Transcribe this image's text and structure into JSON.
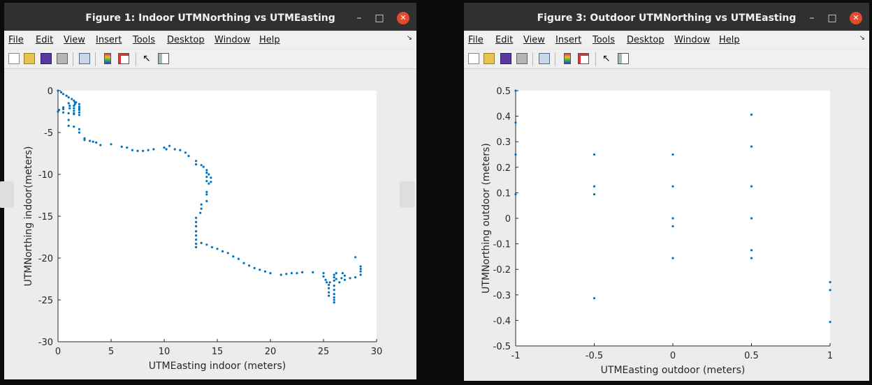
{
  "windows": [
    {
      "title": "Figure 1: Indoor UTMNorthing vs UTMEasting",
      "menu": [
        "File",
        "Edit",
        "View",
        "Insert",
        "Tools",
        "Desktop",
        "Window",
        "Help"
      ],
      "chart_data": {
        "type": "scatter",
        "xlabel": "UTMEasting indoor (meters)",
        "ylabel": "UTMNorthing indoor(meters)",
        "xlim": [
          0,
          30
        ],
        "ylim": [
          -30,
          0
        ],
        "xticks": [
          "0",
          "5",
          "10",
          "15",
          "20",
          "25",
          "30"
        ],
        "yticks": [
          "0",
          "-5",
          "-10",
          "-15",
          "-20",
          "-25",
          "-30"
        ],
        "grid": false,
        "marker_color": "#0072BD",
        "points": [
          [
            0,
            0
          ],
          [
            0.3,
            -0.2
          ],
          [
            0.5,
            -0.4
          ],
          [
            0.8,
            -0.6
          ],
          [
            1,
            -0.8
          ],
          [
            1.3,
            -1
          ],
          [
            1.5,
            -1.2
          ],
          [
            1.7,
            -1.4
          ],
          [
            2,
            -1.6
          ],
          [
            0,
            -2.5
          ],
          [
            0.1,
            -2.3
          ],
          [
            0.5,
            -2.6
          ],
          [
            1,
            -2.7
          ],
          [
            1.5,
            -2.8
          ],
          [
            2,
            -2.9
          ],
          [
            0.5,
            -2
          ],
          [
            0.5,
            -2.2
          ],
          [
            1,
            -1.5
          ],
          [
            1.1,
            -1.8
          ],
          [
            1.1,
            -2.1
          ],
          [
            1.5,
            -1.8
          ],
          [
            1.5,
            -2.1
          ],
          [
            1.5,
            -2.4
          ],
          [
            1.5,
            -2.7
          ],
          [
            1.6,
            -1.4
          ],
          [
            1.6,
            -1.6
          ],
          [
            2,
            -1.9
          ],
          [
            2,
            -2.1
          ],
          [
            2,
            -2.3
          ],
          [
            2,
            -2.6
          ],
          [
            1,
            -3.5
          ],
          [
            1,
            -4.2
          ],
          [
            1.5,
            -4.3
          ],
          [
            2,
            -4.6
          ],
          [
            2,
            -5
          ],
          [
            2.5,
            -5.7
          ],
          [
            2.5,
            -5.9
          ],
          [
            3,
            -6
          ],
          [
            3.3,
            -6.1
          ],
          [
            3.6,
            -6.2
          ],
          [
            4,
            -6.5
          ],
          [
            5,
            -6.4
          ],
          [
            6,
            -6.7
          ],
          [
            6.5,
            -6.8
          ],
          [
            7,
            -7.1
          ],
          [
            7.5,
            -7.2
          ],
          [
            8,
            -7.2
          ],
          [
            8.5,
            -7.1
          ],
          [
            9,
            -7
          ],
          [
            10,
            -6.8
          ],
          [
            10.2,
            -7
          ],
          [
            10.5,
            -6.6
          ],
          [
            11,
            -7
          ],
          [
            11.5,
            -7.1
          ],
          [
            12,
            -7.4
          ],
          [
            12.3,
            -7.8
          ],
          [
            13,
            -8.4
          ],
          [
            13,
            -8.8
          ],
          [
            13.5,
            -8.9
          ],
          [
            13.7,
            -9.1
          ],
          [
            14,
            -9.5
          ],
          [
            14,
            -9.8
          ],
          [
            14,
            -10.3
          ],
          [
            14,
            -10.8
          ],
          [
            14.2,
            -10
          ],
          [
            14.4,
            -10.4
          ],
          [
            14.4,
            -10.9
          ],
          [
            14.2,
            -11.1
          ],
          [
            14,
            -12.1
          ],
          [
            14,
            -12.4
          ],
          [
            14,
            -13.2
          ],
          [
            13.5,
            -13.6
          ],
          [
            13.5,
            -14.1
          ],
          [
            13.4,
            -14.6
          ],
          [
            13,
            -15.2
          ],
          [
            13,
            -15.7
          ],
          [
            13,
            -16.2
          ],
          [
            13,
            -16.8
          ],
          [
            13,
            -17.3
          ],
          [
            13,
            -17.8
          ],
          [
            13,
            -18.3
          ],
          [
            13,
            -18.7
          ],
          [
            13.5,
            -18.2
          ],
          [
            14,
            -18.4
          ],
          [
            14.5,
            -18.7
          ],
          [
            15,
            -18.9
          ],
          [
            15.5,
            -19.2
          ],
          [
            16,
            -19.4
          ],
          [
            16.5,
            -19.8
          ],
          [
            17,
            -20.1
          ],
          [
            17.5,
            -20.6
          ],
          [
            18,
            -20.9
          ],
          [
            18.5,
            -21.2
          ],
          [
            19,
            -21.4
          ],
          [
            19.5,
            -21.6
          ],
          [
            20,
            -21.8
          ],
          [
            21,
            -22
          ],
          [
            21.5,
            -21.9
          ],
          [
            22,
            -21.8
          ],
          [
            22.5,
            -21.8
          ],
          [
            23,
            -21.7
          ],
          [
            24,
            -21.7
          ],
          [
            25,
            -21.8
          ],
          [
            25,
            -22.2
          ],
          [
            25.2,
            -22.6
          ],
          [
            25.3,
            -22.9
          ],
          [
            25.5,
            -23.2
          ],
          [
            25.5,
            -23.6
          ],
          [
            25.5,
            -24.1
          ],
          [
            25.5,
            -24.5
          ],
          [
            25.6,
            -22.9
          ],
          [
            26,
            -22
          ],
          [
            26,
            -22.3
          ],
          [
            26,
            -22.7
          ],
          [
            26,
            -23.3
          ],
          [
            26,
            -23.8
          ],
          [
            26,
            -24.3
          ],
          [
            26,
            -24.7
          ],
          [
            26,
            -25
          ],
          [
            26,
            -25.3
          ],
          [
            26.2,
            -21.8
          ],
          [
            26.2,
            -22.5
          ],
          [
            26.5,
            -22.9
          ],
          [
            26.7,
            -22.4
          ],
          [
            26.8,
            -21.8
          ],
          [
            27,
            -22.1
          ],
          [
            27,
            -22.6
          ],
          [
            27.5,
            -22.4
          ],
          [
            28,
            -22.3
          ],
          [
            28,
            -19.9
          ],
          [
            28.5,
            -21
          ],
          [
            28.5,
            -21.3
          ],
          [
            28.5,
            -21.6
          ],
          [
            28.5,
            -22
          ]
        ]
      }
    },
    {
      "title": "Figure 3: Outdoor UTMNorthing vs UTMEasting",
      "menu": [
        "File",
        "Edit",
        "View",
        "Insert",
        "Tools",
        "Desktop",
        "Window",
        "Help"
      ],
      "chart_data": {
        "type": "scatter",
        "xlabel": "UTMEasting outdoor (meters)",
        "ylabel": "UTMNorthing outdoor (meters)",
        "xlim": [
          -1,
          1
        ],
        "ylim": [
          -0.5,
          0.5
        ],
        "xticks": [
          "-1",
          "-0.5",
          "0",
          "0.5",
          "1"
        ],
        "yticks": [
          "0.5",
          "0.4",
          "0.3",
          "0.2",
          "0.1",
          "0",
          "-0.1",
          "-0.2",
          "-0.3",
          "-0.4",
          "-0.5"
        ],
        "grid": false,
        "marker_color": "#0072BD",
        "points": [
          [
            -1,
            0.5
          ],
          [
            -1,
            0.375
          ],
          [
            -1,
            0.25
          ],
          [
            -1,
            0.094
          ],
          [
            -0.5,
            0.25
          ],
          [
            -0.5,
            0.125
          ],
          [
            -0.5,
            0.094
          ],
          [
            -0.5,
            -0.313
          ],
          [
            0,
            0.25
          ],
          [
            0,
            0.125
          ],
          [
            0,
            0
          ],
          [
            0,
            -0.031
          ],
          [
            0,
            -0.156
          ],
          [
            0.5,
            0.406
          ],
          [
            0.5,
            0.281
          ],
          [
            0.5,
            0.125
          ],
          [
            0.5,
            0
          ],
          [
            0.5,
            -0.125
          ],
          [
            0.5,
            -0.156
          ],
          [
            1,
            -0.25
          ],
          [
            1,
            -0.281
          ],
          [
            1,
            -0.406
          ]
        ]
      }
    }
  ]
}
